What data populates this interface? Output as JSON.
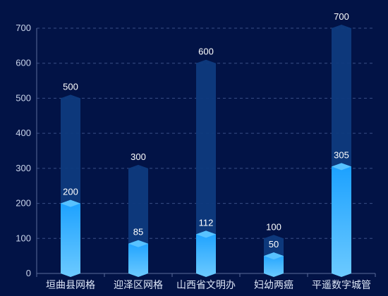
{
  "chart_data": {
    "type": "bar",
    "categories": [
      "垣曲县网格",
      "迎泽区网格",
      "山西省文明办",
      "妇幼两癌",
      "平遥数字城管"
    ],
    "series": [
      {
        "values": [
          500,
          300,
          600,
          100,
          700
        ]
      },
      {
        "values": [
          200,
          85,
          112,
          50,
          305
        ]
      }
    ],
    "ylim": [
      0,
      700
    ],
    "yticks": [
      0,
      100,
      200,
      300,
      400,
      500,
      600,
      700
    ],
    "grid": true,
    "legend": "none",
    "colors": {
      "background": "#021346",
      "background_bar": "#0e3a7e",
      "background_bar_top": "#13438c",
      "bar_top": "#1aa0ff",
      "bar_bottom": "#6ccaff",
      "bar_cap": "#58c2ff",
      "grid": "#3a4f86",
      "axis": "#5a6b99",
      "text": "#c9d4ea"
    }
  }
}
